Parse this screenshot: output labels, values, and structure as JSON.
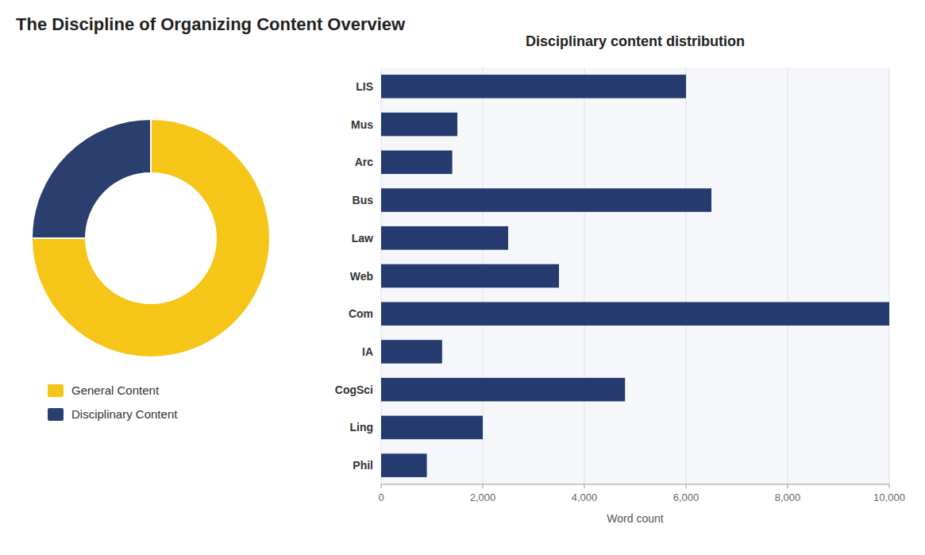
{
  "chart_data": [
    {
      "type": "pie",
      "title": "The Discipline of Organizing Content Overview",
      "categories": [
        "General Content",
        "Disciplinary Content"
      ],
      "values": [
        75,
        25
      ],
      "colors": [
        "#F5C518",
        "#2A3F6E"
      ],
      "legend": "bottom"
    },
    {
      "type": "bar",
      "title": "Disciplinary content distribution",
      "orientation": "horizontal",
      "categories": [
        "LIS",
        "Mus",
        "Arc",
        "Bus",
        "Law",
        "Web",
        "Com",
        "IA",
        "CogSci",
        "Ling",
        "Phil"
      ],
      "values": [
        6000,
        1500,
        1400,
        6500,
        2500,
        3500,
        10000,
        1200,
        4800,
        2000,
        900
      ],
      "color": "#253A6E",
      "xlabel": "Word count",
      "xlim": [
        0,
        10000
      ],
      "xticks": [
        0,
        {
          "value": 2000,
          "label": "2,000"
        },
        {
          "value": 4000,
          "label": "4,000"
        },
        {
          "value": 6000,
          "label": "6,000"
        },
        {
          "value": 8000,
          "label": "8,000"
        },
        {
          "value": 10000,
          "label": "10,000"
        }
      ],
      "grid": true
    }
  ]
}
